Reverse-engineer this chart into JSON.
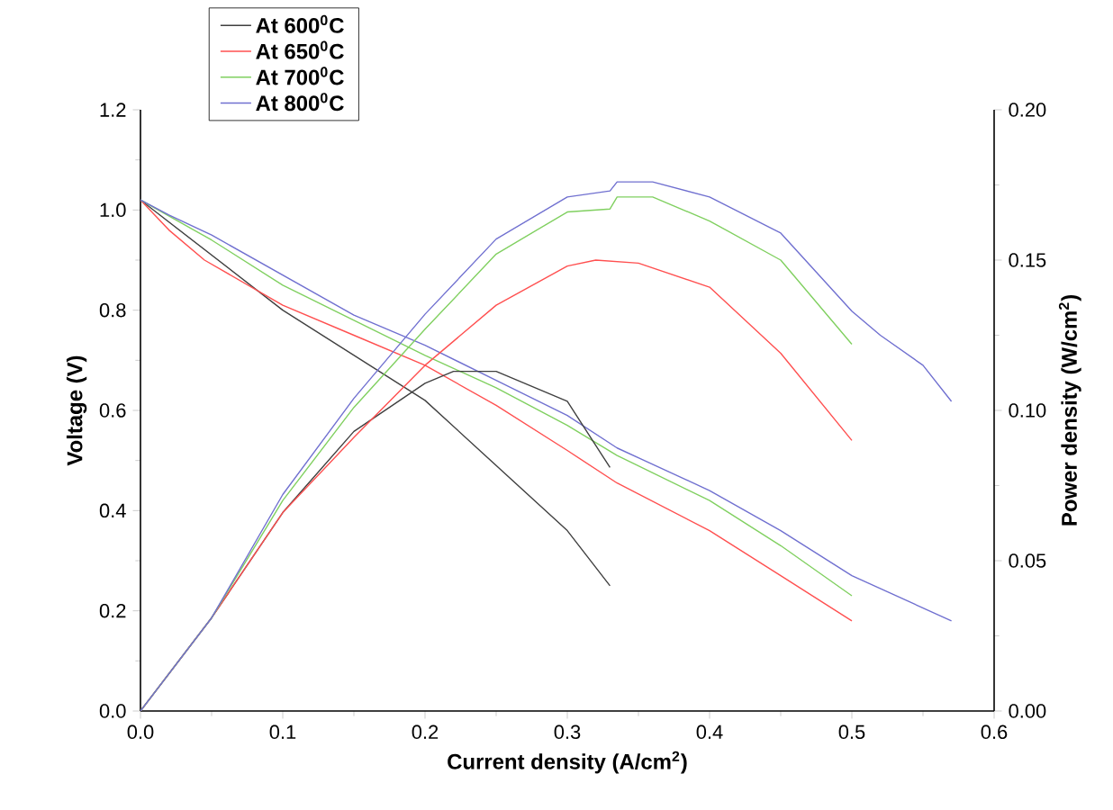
{
  "chart_data": {
    "type": "line",
    "xlabel": "Current density (A/cm$^{2}$)",
    "ylabel": "Voltage (V)",
    "y2label": "Power density (W/cm$^{2}$)",
    "xlim": [
      0,
      0.6
    ],
    "ylim": [
      0,
      1.2
    ],
    "y2lim": [
      0,
      0.2
    ],
    "xticks": [
      {
        "value": 0,
        "label": "0.0"
      },
      {
        "value": 0.1,
        "label": "0.1"
      },
      {
        "value": 0.2,
        "label": "0.2"
      },
      {
        "value": 0.3,
        "label": "0.3"
      },
      {
        "value": 0.4,
        "label": "0.4"
      },
      {
        "value": 0.5,
        "label": "0.5"
      },
      {
        "value": 0.6,
        "label": "0.6"
      }
    ],
    "yticks": [
      {
        "value": 0,
        "label": "0.0"
      },
      {
        "value": 0.2,
        "label": "0.2"
      },
      {
        "value": 0.4,
        "label": "0.4"
      },
      {
        "value": 0.6,
        "label": "0.6"
      },
      {
        "value": 0.8,
        "label": "0.8"
      },
      {
        "value": 1.0,
        "label": "1.0"
      },
      {
        "value": 1.2,
        "label": "1.2"
      }
    ],
    "y2ticks": [
      {
        "value": 0,
        "label": "0.00"
      },
      {
        "value": 0.05,
        "label": "0.05"
      },
      {
        "value": 0.1,
        "label": "0.10"
      },
      {
        "value": 0.15,
        "label": "0.15"
      },
      {
        "value": 0.2,
        "label": "0.20"
      }
    ],
    "legend": "top left",
    "series": [
      {
        "name": "At 600$^{0}$C",
        "color": "#404040",
        "x": [
          0,
          0.05,
          0.1,
          0.15,
          0.2,
          0.25,
          0.3,
          0.33
        ],
        "values": [
          1.02,
          0.91,
          0.8,
          0.71,
          0.62,
          0.49,
          0.36,
          0.25
        ]
      },
      {
        "name": "At 650$^{0}$C",
        "color": "#ff5050",
        "x": [
          0,
          0.02,
          0.045,
          0.1,
          0.15,
          0.2,
          0.25,
          0.3,
          0.335,
          0.4,
          0.45,
          0.5
        ],
        "values": [
          1.02,
          0.96,
          0.9,
          0.81,
          0.75,
          0.69,
          0.61,
          0.52,
          0.455,
          0.36,
          0.27,
          0.18
        ]
      },
      {
        "name": "At 700$^{0}$C",
        "color": "#80d060",
        "x": [
          0,
          0.05,
          0.1,
          0.15,
          0.2,
          0.25,
          0.3,
          0.335,
          0.4,
          0.45,
          0.5
        ],
        "values": [
          1.02,
          0.94,
          0.85,
          0.78,
          0.71,
          0.645,
          0.57,
          0.51,
          0.42,
          0.33,
          0.23
        ]
      },
      {
        "name": "At 800$^{0}$C",
        "color": "#7070d0",
        "x": [
          0,
          0.02,
          0.05,
          0.1,
          0.15,
          0.2,
          0.25,
          0.3,
          0.335,
          0.4,
          0.45,
          0.5,
          0.57
        ],
        "values": [
          1.02,
          0.99,
          0.95,
          0.87,
          0.79,
          0.73,
          0.66,
          0.59,
          0.525,
          0.44,
          0.36,
          0.27,
          0.18
        ]
      },
      {
        "color": "#404040",
        "axis": "y2",
        "x": [
          0,
          0.05,
          0.1,
          0.15,
          0.2,
          0.22,
          0.25,
          0.3,
          0.33
        ],
        "values": [
          0,
          0.031,
          0.066,
          0.093,
          0.109,
          0.113,
          0.113,
          0.103,
          0.081
        ]
      },
      {
        "color": "#ff5050",
        "axis": "y2",
        "x": [
          0,
          0.05,
          0.1,
          0.15,
          0.2,
          0.25,
          0.3,
          0.32,
          0.35,
          0.4,
          0.45,
          0.5
        ],
        "values": [
          0,
          0.031,
          0.066,
          0.091,
          0.115,
          0.135,
          0.148,
          0.15,
          0.149,
          0.141,
          0.119,
          0.09
        ]
      },
      {
        "color": "#80d060",
        "axis": "y2",
        "x": [
          0,
          0.05,
          0.1,
          0.15,
          0.2,
          0.25,
          0.3,
          0.33,
          0.335,
          0.36,
          0.4,
          0.45,
          0.5
        ],
        "values": [
          0,
          0.031,
          0.07,
          0.101,
          0.127,
          0.152,
          0.166,
          0.167,
          0.171,
          0.171,
          0.163,
          0.15,
          0.122
        ]
      },
      {
        "color": "#7070d0",
        "axis": "y2",
        "x": [
          0,
          0.05,
          0.1,
          0.15,
          0.2,
          0.25,
          0.3,
          0.33,
          0.335,
          0.36,
          0.4,
          0.45,
          0.5,
          0.52,
          0.55,
          0.57
        ],
        "values": [
          0,
          0.031,
          0.072,
          0.104,
          0.132,
          0.157,
          0.171,
          0.173,
          0.176,
          0.176,
          0.171,
          0.159,
          0.133,
          0.125,
          0.115,
          0.103
        ]
      }
    ]
  }
}
